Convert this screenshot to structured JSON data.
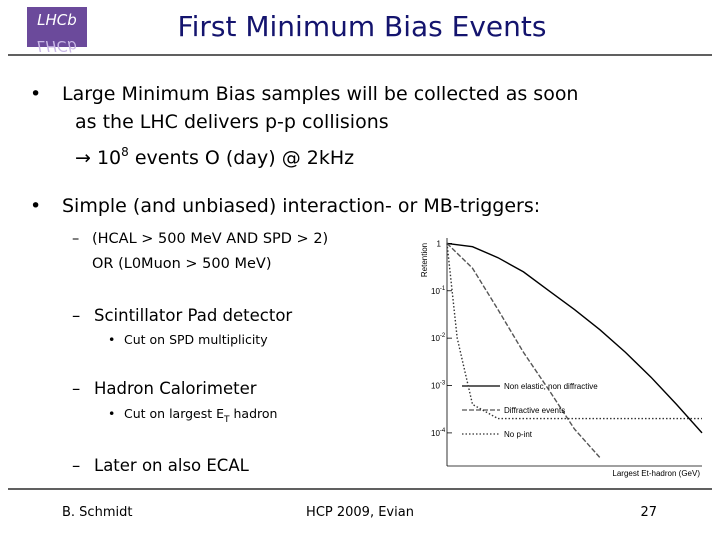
{
  "header": {
    "logo": "LHCb",
    "title": "First Minimum Bias Events"
  },
  "bullets": [
    {
      "lines": [
        "Large Minimum Bias samples will be collected as soon",
        "as the LHC delivers p-p collisions"
      ],
      "arrow": {
        "base": "10",
        "sup": "8",
        "rest": " events O (day) @ 2kHz"
      }
    },
    {
      "lines": [
        "Simple (and unbiased) interaction- or MB-triggers:"
      ],
      "sub": [
        {
          "lines": [
            "(HCAL > 500 MeV  AND  SPD > 2)",
            "OR  (L0Muon > 500 MeV)"
          ]
        },
        {
          "lines": [
            "Scintillator Pad detector"
          ],
          "sub": [
            "Cut on SPD multiplicity"
          ]
        },
        {
          "lines": [
            "Hadron Calorimeter"
          ],
          "sub": [
            {
              "before": "Cut on largest E",
              "subscript": "T",
              "after": " hadron"
            }
          ]
        },
        {
          "lines": [
            "Later on also ECAL"
          ]
        }
      ]
    }
  ],
  "footer": {
    "author": "B. Schmidt",
    "event": "HCP 2009,  Evian",
    "page": "27"
  },
  "chart_data": {
    "type": "line",
    "y_label": "Retention",
    "x_label": "Largest Et-hadron (GeV)",
    "log_y": true,
    "xlim": [
      0,
      5
    ],
    "ylim": [
      2e-05,
      1.3
    ],
    "yticks": [
      1,
      {
        "value": 0.1,
        "label": "10",
        "exponent": "-1"
      },
      {
        "value": 0.01,
        "label": "10",
        "exponent": "-2"
      },
      {
        "value": 0.001,
        "label": "10",
        "exponent": "-3"
      },
      {
        "value": 0.0001,
        "label": "10",
        "exponent": "-4"
      }
    ],
    "series": [
      {
        "name": "Non elastic, non diffractive",
        "color": "#000000",
        "style": "solid",
        "x": [
          0,
          0.5,
          1,
          1.5,
          2,
          2.5,
          3,
          3.5,
          4,
          4.5,
          5
        ],
        "values": [
          1,
          0.85,
          0.5,
          0.25,
          0.1,
          0.04,
          0.015,
          0.005,
          0.0015,
          0.0004,
          0.0001
        ]
      },
      {
        "name": "Diffractive events",
        "color": "#555555",
        "style": "dashed",
        "x": [
          0,
          0.5,
          1,
          1.5,
          2,
          2.5,
          3
        ],
        "values": [
          1,
          0.3,
          0.04,
          0.005,
          0.0008,
          0.00012,
          3e-05
        ]
      },
      {
        "name": "No p-int",
        "color": "#333333",
        "style": "dotted",
        "x": [
          0,
          0.2,
          0.5,
          1,
          2,
          3,
          4,
          5
        ],
        "values": [
          1,
          0.01,
          0.0004,
          0.0002,
          0.0002,
          0.0002,
          0.0002,
          0.0002
        ]
      }
    ]
  }
}
